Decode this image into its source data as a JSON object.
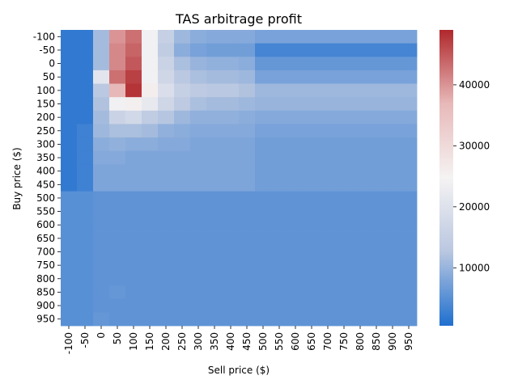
{
  "chart_data": {
    "type": "heatmap",
    "title": "TAS arbitrage profit",
    "xlabel": "Sell price ($)",
    "ylabel": "Buy price ($)",
    "x_categories": [
      "-100",
      "-50",
      "0",
      "50",
      "100",
      "150",
      "200",
      "250",
      "300",
      "350",
      "400",
      "450",
      "500",
      "550",
      "600",
      "650",
      "700",
      "750",
      "800",
      "850",
      "900",
      "950"
    ],
    "y_categories": [
      "-100",
      "-50",
      "0",
      "50",
      "100",
      "150",
      "200",
      "250",
      "300",
      "350",
      "400",
      "450",
      "500",
      "550",
      "600",
      "650",
      "700",
      "750",
      "800",
      "850",
      "900",
      "950"
    ],
    "values": [
      [
        2000,
        2000,
        11000,
        40000,
        43000,
        24000,
        15000,
        10500,
        9000,
        8500,
        8500,
        8500,
        7500,
        7500,
        7500,
        7500,
        7500,
        7500,
        7500,
        7500,
        7500,
        7500
      ],
      [
        2000,
        2000,
        11000,
        41000,
        44000,
        24000,
        14000,
        9000,
        7500,
        7000,
        7000,
        7000,
        3500,
        3500,
        3500,
        3500,
        3500,
        3500,
        3500,
        3500,
        3500,
        3500
      ],
      [
        2000,
        2000,
        11000,
        41000,
        45000,
        24000,
        16000,
        11500,
        10000,
        9500,
        9500,
        9000,
        6000,
        6000,
        6000,
        6000,
        6000,
        6000,
        6000,
        6000,
        6000,
        6000
      ],
      [
        2000,
        2000,
        21000,
        43000,
        47000,
        24000,
        17000,
        13000,
        11500,
        11000,
        11000,
        10500,
        7500,
        7500,
        7500,
        7500,
        7500,
        7500,
        7500,
        7500,
        7500,
        7500
      ],
      [
        2000,
        2000,
        13000,
        37000,
        48000,
        26000,
        19000,
        15000,
        13500,
        13000,
        13000,
        12000,
        10500,
        10500,
        10500,
        10500,
        10500,
        10500,
        10500,
        10500,
        10500,
        10500
      ],
      [
        2000,
        2000,
        12000,
        24000,
        25500,
        22000,
        17000,
        13500,
        11500,
        11000,
        11000,
        10500,
        10000,
        10000,
        10000,
        10000,
        10000,
        10000,
        10000,
        10000,
        10000,
        10000
      ],
      [
        2000,
        2000,
        11000,
        16000,
        17500,
        14000,
        12500,
        10500,
        9500,
        9500,
        9500,
        9000,
        8500,
        8500,
        8500,
        8500,
        8500,
        8500,
        8500,
        8500,
        8500,
        8500
      ],
      [
        2000,
        3000,
        10500,
        11500,
        11500,
        11000,
        9500,
        9000,
        8500,
        8500,
        8500,
        8500,
        7500,
        7500,
        7500,
        7500,
        7500,
        7500,
        7500,
        7500,
        7500,
        7500
      ],
      [
        2000,
        3000,
        9000,
        9500,
        9000,
        9000,
        8500,
        8500,
        8000,
        8000,
        8000,
        8000,
        7000,
        7000,
        7000,
        7000,
        7000,
        7000,
        7000,
        7000,
        7000,
        7000
      ],
      [
        2000,
        3000,
        8500,
        8500,
        8000,
        8000,
        8000,
        8000,
        8000,
        8000,
        8000,
        8000,
        7000,
        7000,
        7000,
        7000,
        7000,
        7000,
        7000,
        7000,
        7000,
        7000
      ],
      [
        2000,
        3000,
        8000,
        8000,
        8000,
        8000,
        8000,
        8000,
        8000,
        8000,
        8000,
        8000,
        7000,
        7000,
        7000,
        7000,
        7000,
        7000,
        7000,
        7000,
        7000,
        7000
      ],
      [
        2000,
        3000,
        8000,
        8000,
        8000,
        8000,
        8000,
        8000,
        8000,
        8000,
        8000,
        8000,
        7000,
        7000,
        7000,
        7000,
        7000,
        7000,
        7000,
        7000,
        7000,
        7000
      ],
      [
        5000,
        5000,
        5500,
        5500,
        5500,
        5500,
        5500,
        5500,
        5500,
        5500,
        5500,
        5500,
        5500,
        5500,
        5500,
        5500,
        5500,
        5500,
        5500,
        5500,
        5500,
        5500
      ],
      [
        5000,
        5000,
        5500,
        5500,
        5500,
        5500,
        5500,
        5500,
        5500,
        5500,
        5500,
        5500,
        5500,
        5500,
        5500,
        5500,
        5500,
        5500,
        5500,
        5500,
        5500,
        5500
      ],
      [
        5000,
        5000,
        5500,
        5500,
        5500,
        5500,
        5500,
        5500,
        5500,
        5500,
        5500,
        5500,
        5500,
        5500,
        5500,
        5500,
        5500,
        5500,
        5500,
        5500,
        5500,
        5500
      ],
      [
        5000,
        5000,
        5500,
        5500,
        5500,
        5500,
        5500,
        5500,
        5500,
        5500,
        5500,
        5500,
        5500,
        5500,
        5500,
        5500,
        5500,
        5500,
        5500,
        5500,
        5500,
        5500
      ],
      [
        5000,
        5000,
        5500,
        5500,
        5500,
        5500,
        5500,
        5500,
        5500,
        5500,
        5500,
        5500,
        5500,
        5500,
        5500,
        5500,
        5500,
        5500,
        5500,
        5500,
        5500,
        5500
      ],
      [
        5000,
        5000,
        5500,
        5500,
        5500,
        5500,
        5500,
        5500,
        5500,
        5500,
        5500,
        5500,
        5500,
        5500,
        5500,
        5500,
        5500,
        5500,
        5500,
        5500,
        5500,
        5500
      ],
      [
        5000,
        5000,
        5500,
        5500,
        5500,
        5500,
        5500,
        5500,
        5500,
        5500,
        5500,
        5500,
        5500,
        5500,
        5500,
        5500,
        5500,
        5500,
        5500,
        5500,
        5500,
        5500
      ],
      [
        5000,
        5000,
        5500,
        6000,
        5500,
        5500,
        5500,
        5500,
        5500,
        5500,
        5500,
        5500,
        5500,
        5500,
        5500,
        5500,
        5500,
        5500,
        5500,
        5500,
        5500,
        5500
      ],
      [
        5000,
        5000,
        5500,
        5500,
        5500,
        5500,
        5500,
        5500,
        5500,
        5500,
        5500,
        5500,
        5500,
        5500,
        5500,
        5500,
        5500,
        5500,
        5500,
        5500,
        5500,
        5500
      ],
      [
        5000,
        5000,
        6000,
        5500,
        5500,
        5500,
        5500,
        5500,
        5500,
        5500,
        5500,
        5500,
        5500,
        5500,
        5500,
        5500,
        5500,
        5500,
        5500,
        5500,
        5500,
        5500
      ]
    ],
    "vmin": 500,
    "vmax": 49000,
    "colorbar_ticks": [
      10000,
      20000,
      30000,
      40000
    ],
    "colorbar_tick_labels": [
      "10000",
      "20000",
      "30000",
      "40000"
    ],
    "colormap": [
      "#1f6fcf",
      "#b9c7e0",
      "#f5f3f3",
      "#e8b9b9",
      "#b0282c"
    ],
    "grid": false
  }
}
